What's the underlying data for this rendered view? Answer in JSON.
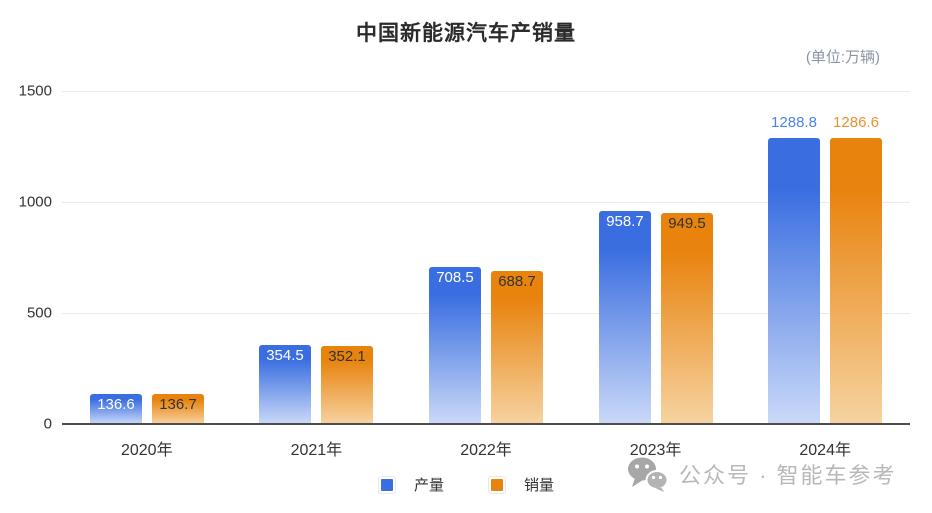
{
  "title": "中国新能源汽车产销量",
  "unit_label": "(单位:万辆)",
  "chart_data": {
    "type": "bar",
    "title": "中国新能源汽车产销量",
    "unit": "万辆",
    "categories": [
      "2020年",
      "2021年",
      "2022年",
      "2023年",
      "2024年"
    ],
    "series": [
      {
        "name": "产量",
        "color_top": "#3a6ee0",
        "color_bottom": "#cbd9f8",
        "inside_label_color": "#ffffff",
        "above_label_color": "#4d82e8",
        "values": [
          136.6,
          354.5,
          708.5,
          958.7,
          1288.8
        ]
      },
      {
        "name": "销量",
        "color_top": "#e8830e",
        "color_bottom": "#f6d3a1",
        "inside_label_color": "#333333",
        "above_label_color": "#e9902f",
        "values": [
          136.7,
          352.1,
          688.7,
          949.5,
          1286.6
        ]
      }
    ],
    "value_label_position": [
      "inside",
      "inside",
      "inside",
      "inside",
      "above"
    ],
    "ylim": [
      0,
      1500
    ],
    "yticks": [
      0,
      500,
      1000,
      1500
    ],
    "grid": true,
    "legend_position": "bottom"
  },
  "legend": {
    "items": [
      {
        "label": "产量",
        "color": "#3a6ee0"
      },
      {
        "label": "销量",
        "color": "#e8830e"
      }
    ]
  },
  "watermark": {
    "icon": "wechat-icon",
    "text": "公众号 · 智能车参考"
  }
}
